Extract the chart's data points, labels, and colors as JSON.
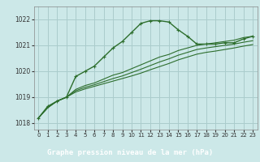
{
  "title": "Graphe pression niveau de la mer (hPa)",
  "bg_color": "#cce8e8",
  "plot_bg": "#cce8e8",
  "label_bg": "#2d6e2d",
  "label_fg": "#ffffff",
  "grid_color": "#aacccc",
  "line_color": "#2d6e2d",
  "xlim": [
    -0.5,
    23.5
  ],
  "ylim": [
    1017.75,
    1022.5
  ],
  "yticks": [
    1018,
    1019,
    1020,
    1021,
    1022
  ],
  "xticks": [
    0,
    1,
    2,
    3,
    4,
    5,
    6,
    7,
    8,
    9,
    10,
    11,
    12,
    13,
    14,
    15,
    16,
    17,
    18,
    19,
    20,
    21,
    22,
    23
  ],
  "peak_series": [
    1018.2,
    1018.65,
    1018.85,
    1019.0,
    1019.8,
    1020.0,
    1020.2,
    1020.55,
    1020.9,
    1021.15,
    1021.5,
    1021.85,
    1021.95,
    1021.95,
    1021.9,
    1021.6,
    1021.35,
    1021.05,
    1021.05,
    1021.05,
    1021.1,
    1021.1,
    1021.25,
    1021.35
  ],
  "series1": [
    1018.2,
    1018.6,
    1018.85,
    1019.0,
    1019.3,
    1019.45,
    1019.55,
    1019.7,
    1019.85,
    1019.95,
    1020.1,
    1020.25,
    1020.4,
    1020.55,
    1020.65,
    1020.8,
    1020.9,
    1021.0,
    1021.05,
    1021.1,
    1021.15,
    1021.2,
    1021.3,
    1021.35
  ],
  "series2": [
    1018.2,
    1018.6,
    1018.85,
    1019.0,
    1019.25,
    1019.38,
    1019.48,
    1019.6,
    1019.72,
    1019.82,
    1019.95,
    1020.08,
    1020.22,
    1020.36,
    1020.48,
    1020.62,
    1020.73,
    1020.84,
    1020.9,
    1020.95,
    1021.0,
    1021.05,
    1021.12,
    1021.18
  ],
  "series3": [
    1018.2,
    1018.6,
    1018.85,
    1019.0,
    1019.2,
    1019.32,
    1019.42,
    1019.52,
    1019.62,
    1019.72,
    1019.82,
    1019.93,
    1020.06,
    1020.18,
    1020.3,
    1020.44,
    1020.55,
    1020.66,
    1020.73,
    1020.78,
    1020.84,
    1020.9,
    1020.97,
    1021.03
  ],
  "marker": "+"
}
